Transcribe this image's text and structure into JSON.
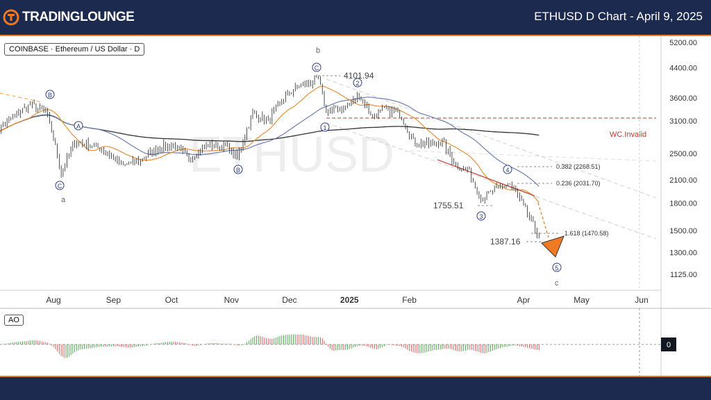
{
  "header": {
    "brand_part1": "TRADING",
    "brand_part2": "LOUNGE",
    "title": "ETHUSD D Chart - April 9, 2025"
  },
  "symbol_label": "COINBASE · Ethereum / US Dollar · D",
  "watermark": "ETHUSD",
  "indicator_label": "AO",
  "ao_zero_label": "0",
  "chart_data": {
    "type": "candlestick",
    "price_axis_labels": [
      "5200.00",
      "4400.00",
      "3600.00",
      "3100.00",
      "2500.00",
      "2100.00",
      "1800.00",
      "1500.00",
      "1300.00",
      "1125.00"
    ],
    "time_axis_labels": [
      "Aug",
      "Sep",
      "Oct",
      "Nov",
      "Dec",
      "2025",
      "Feb",
      "Apr",
      "May",
      "Jun"
    ],
    "annotations": {
      "high_label": "4101.94",
      "low1_label": "1755.51",
      "low2_label": "1387.16",
      "invalid_label": "WC.Invalid",
      "fib_382": "0.382 (2268.51)",
      "fib_236": "0.236 (2031.70)",
      "fib_1618": "1.618 (1470.58)"
    },
    "waves": {
      "b_top": "b",
      "a_bottom": "a",
      "c_bottom": "c",
      "circle_c1": "C",
      "circle_b1": "B",
      "circle_a1": "A",
      "circle_b2": "B",
      "circle_c2": "C",
      "wave1": "1",
      "wave2": "2",
      "wave3": "3",
      "wave4": "4",
      "wave5": "5"
    },
    "price_path": [
      [
        "2024-07-01",
        2850
      ],
      [
        "2024-07-10",
        3150
      ],
      [
        "2024-07-20",
        3450
      ],
      [
        "2024-07-28",
        3300
      ],
      [
        "2024-08-05",
        2200
      ],
      [
        "2024-08-12",
        2700
      ],
      [
        "2024-08-20",
        2650
      ],
      [
        "2024-08-27",
        2550
      ],
      [
        "2024-09-06",
        2300
      ],
      [
        "2024-09-15",
        2400
      ],
      [
        "2024-09-25",
        2600
      ],
      [
        "2024-10-01",
        2650
      ],
      [
        "2024-10-10",
        2420
      ],
      [
        "2024-10-20",
        2650
      ],
      [
        "2024-10-30",
        2600
      ],
      [
        "2024-11-04",
        2420
      ],
      [
        "2024-11-12",
        3250
      ],
      [
        "2024-11-20",
        3100
      ],
      [
        "2024-11-28",
        3600
      ],
      [
        "2024-12-06",
        3900
      ],
      [
        "2024-12-16",
        4050
      ],
      [
        "2024-12-20",
        3300
      ],
      [
        "2024-12-30",
        3400
      ],
      [
        "2025-01-06",
        3650
      ],
      [
        "2025-01-13",
        3200
      ],
      [
        "2025-01-20",
        3350
      ],
      [
        "2025-01-27",
        3250
      ],
      [
        "2025-02-03",
        2700
      ],
      [
        "2025-02-10",
        2650
      ],
      [
        "2025-02-18",
        2700
      ],
      [
        "2025-02-25",
        2300
      ],
      [
        "2025-03-03",
        2250
      ],
      [
        "2025-03-10",
        1850
      ],
      [
        "2025-03-20",
        2000
      ],
      [
        "2025-03-25",
        2050
      ],
      [
        "2025-03-31",
        1800
      ],
      [
        "2025-04-06",
        1550
      ],
      [
        "2025-04-09",
        1450
      ]
    ],
    "grid": false,
    "legend": "none"
  }
}
